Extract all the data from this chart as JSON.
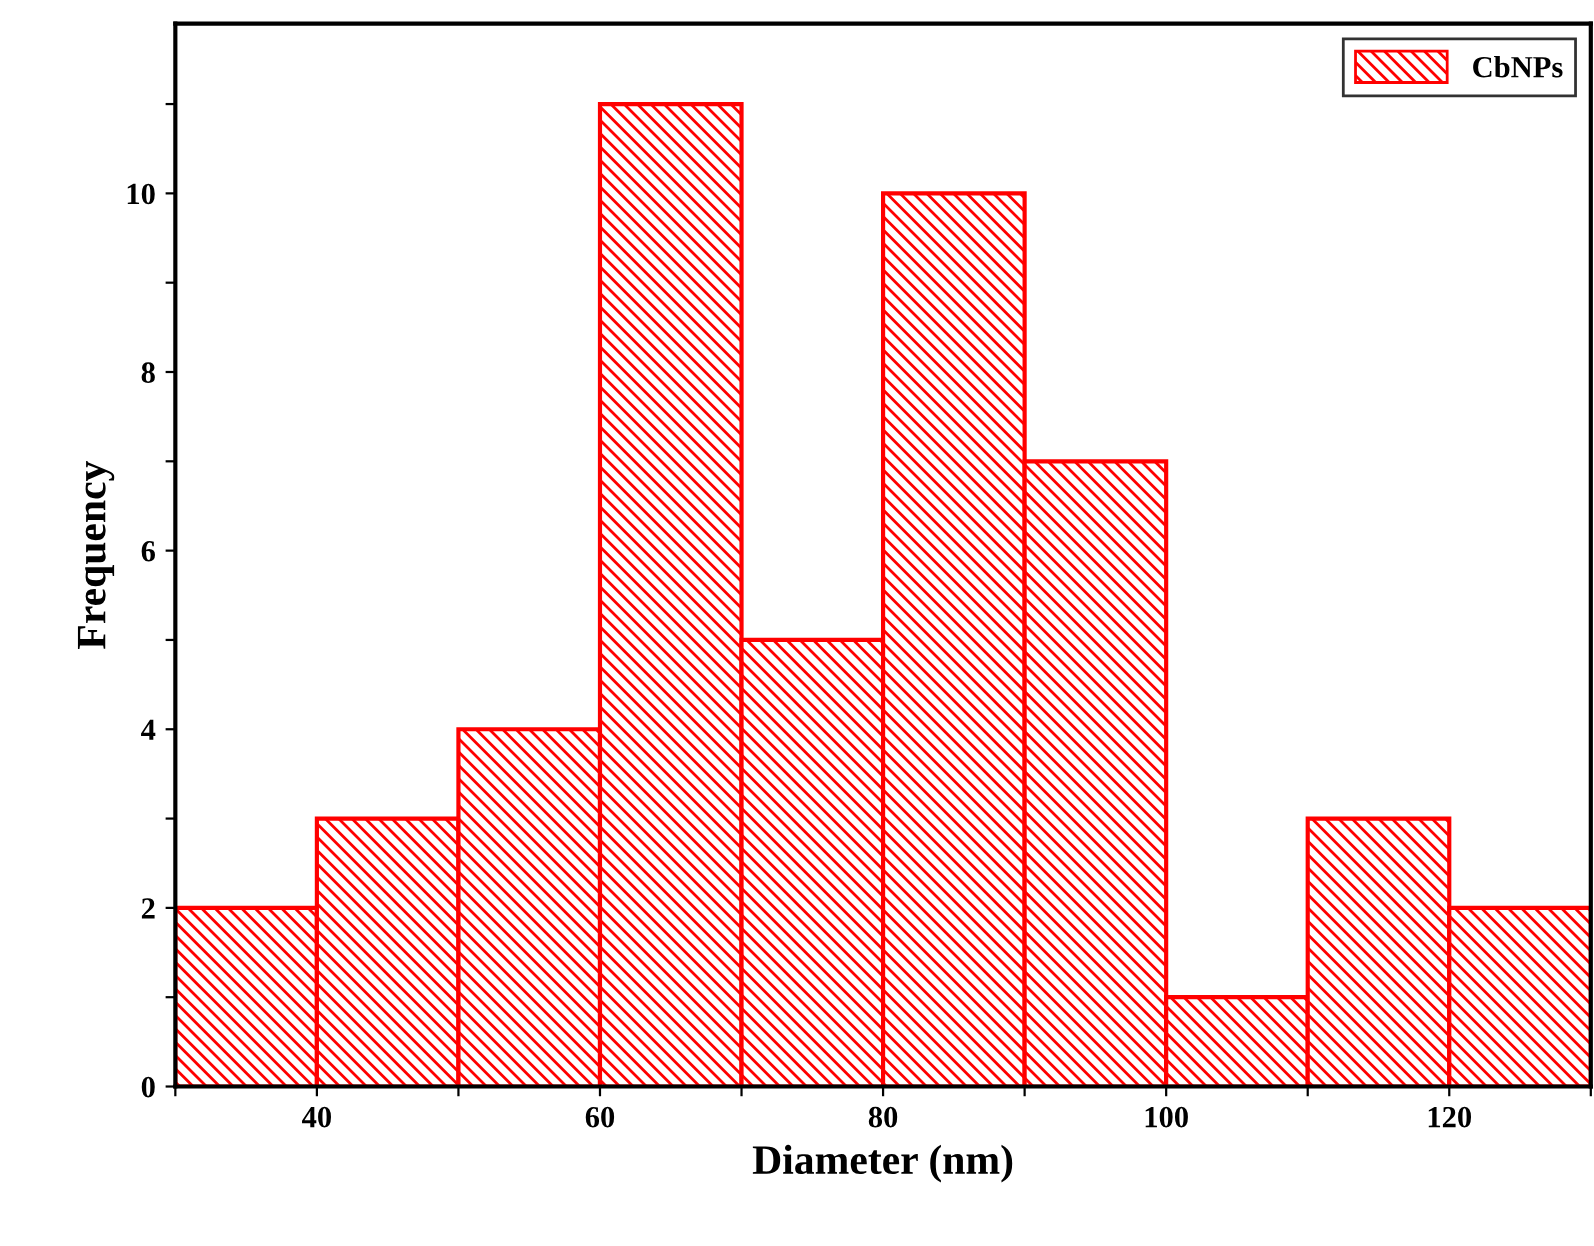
{
  "chart_data": {
    "type": "histogram",
    "xlabel": "Diameter (nm)",
    "ylabel": "Frequency",
    "bins": [
      30,
      40,
      50,
      60,
      70,
      80,
      90,
      100,
      110,
      120,
      130
    ],
    "series": [
      {
        "name": "CbNPs",
        "color": "#ff0000",
        "values": [
          2,
          3,
          4,
          11,
          5,
          10,
          7,
          1,
          3,
          2
        ]
      }
    ],
    "xlim": [
      30,
      130
    ],
    "xticks": [
      {
        "value": 30,
        "label": null
      },
      40,
      {
        "value": 50,
        "label": null
      },
      60,
      {
        "value": 70,
        "label": null
      },
      80,
      {
        "value": 90,
        "label": null
      },
      100,
      {
        "value": 110,
        "label": null
      },
      120,
      {
        "value": 130,
        "label": null
      }
    ],
    "ylim": [
      0,
      11.9
    ],
    "yticks": [
      0,
      {
        "value": 1,
        "label": null
      },
      2,
      {
        "value": 3,
        "label": null
      },
      4,
      {
        "value": 5,
        "label": null
      },
      6,
      {
        "value": 7,
        "label": null
      },
      8,
      {
        "value": 9,
        "label": null
      },
      10,
      {
        "value": 11,
        "label": null
      }
    ],
    "grid": false,
    "legend": "top right"
  }
}
